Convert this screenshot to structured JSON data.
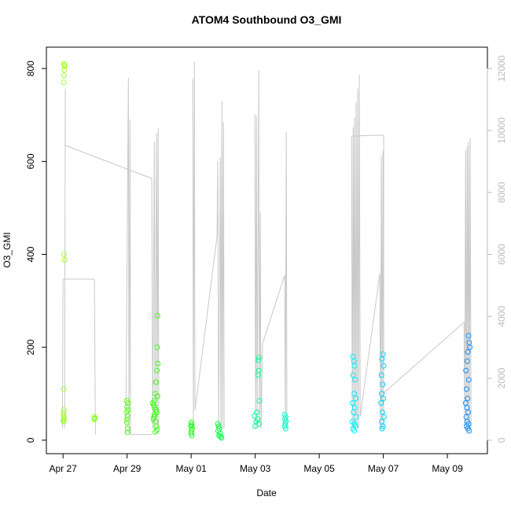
{
  "chart_data": {
    "type": "scatter",
    "title": "ATOM4 Southbound O3_GMI",
    "x_label": "Date",
    "y_label": "O3_GMI",
    "xlim": [
      116.48,
      130.25
    ],
    "xticks": [
      {
        "value": 117,
        "label": "Apr 27"
      },
      {
        "value": 119,
        "label": "Apr 29"
      },
      {
        "value": 121,
        "label": "May 01"
      },
      {
        "value": 123,
        "label": "May 03"
      },
      {
        "value": 125,
        "label": "May 05"
      },
      {
        "value": 127,
        "label": "May 07"
      },
      {
        "value": 129,
        "label": "May 09"
      }
    ],
    "ylim": [
      -29,
      846
    ],
    "yticks": [
      0,
      200,
      400,
      600,
      800
    ],
    "y2lim": [
      -435,
      12690
    ],
    "y2ticks": [
      0,
      2000,
      4000,
      6000,
      8000,
      10000,
      12000
    ],
    "y2_color": "#bbbbbb",
    "series": [
      {
        "type": "line",
        "axis": "y2",
        "color": "#c8c8c8",
        "x": [
          116.98,
          117.0,
          117.98,
          118.01,
          null,
          117.05,
          117.07,
          117.07,
          119.77,
          119.8,
          119.85,
          119.87,
          119.92,
          119.94,
          119.97,
          119.99,
          null,
          118.96,
          119.04,
          119.06,
          119.09,
          119.11,
          119.8,
          null,
          121.05,
          121.07,
          121.1,
          121.12,
          121.81,
          121.83,
          121.86,
          121.91,
          121.93,
          121.96,
          121.98,
          122.01,
          122.03,
          null,
          122.99,
          123.01,
          123.04,
          123.06,
          123.11,
          123.13,
          123.16,
          123.18,
          123.23,
          123.92,
          123.94,
          123.97,
          123.99,
          null,
          126.01,
          126.03,
          126.06,
          126.08,
          126.1,
          126.13,
          126.15,
          126.18,
          126.2,
          126.23,
          126.25,
          126.28,
          126.89,
          126.91,
          126.94,
          126.96,
          126.99,
          127.01,
          127.01,
          126.03,
          null,
          127.01,
          129.52,
          129.54,
          129.57,
          129.59,
          129.62,
          129.64,
          129.66,
          129.69,
          129.71,
          129.74
        ],
        "values": [
          380,
          5200,
          5200,
          180,
          null,
          380,
          11350,
          9520,
          8450,
          380,
          9640,
          380,
          9900,
          380,
          10080,
          380,
          null,
          180,
          11700,
          180,
          10360,
          180,
          180,
          null,
          11670,
          380,
          12230,
          960,
          6600,
          9010,
          380,
          9140,
          380,
          10960,
          380,
          10280,
          380,
          null,
          10530,
          380,
          10460,
          380,
          11930,
          380,
          7360,
          380,
          3120,
          5330,
          380,
          9950,
          380,
          null,
          9820,
          380,
          10100,
          380,
          10410,
          380,
          10910,
          380,
          11350,
          380,
          11800,
          760,
          5380,
          380,
          9190,
          380,
          9340,
          380,
          9850,
          9820,
          null,
          1520,
          3810,
          380,
          9370,
          380,
          9490,
          380,
          9620,
          380,
          9750,
          380
        ]
      },
      {
        "color": "#a6ff2e",
        "x": [
          117.03,
          117.04,
          117.05,
          117.04,
          117.03,
          117.02,
          117.03,
          117.05,
          117.02,
          117.03,
          117.01,
          117.02,
          117.03,
          117.02,
          117.01,
          117.02
        ],
        "values": [
          810,
          808,
          805,
          797,
          785,
          770,
          400,
          388,
          110,
          65,
          58,
          52,
          48,
          45,
          42,
          40
        ]
      },
      {
        "color": "#86ff24",
        "x": [
          117.98,
          117.99,
          117.98
        ],
        "values": [
          50,
          47,
          45
        ]
      },
      {
        "color": "#5cff1a",
        "x": [
          118.99,
          119.02,
          119.0,
          119.03,
          118.98,
          119.01,
          119.0,
          118.99,
          119.02,
          119.01
        ],
        "values": [
          85,
          80,
          72,
          65,
          60,
          52,
          45,
          38,
          25,
          17
        ]
      },
      {
        "color": "#36ff0c",
        "x": [
          119.95,
          119.94,
          119.96,
          119.93,
          119.9,
          119.88,
          119.95,
          119.85,
          119.8,
          119.83,
          119.87,
          119.9,
          119.92,
          119.86,
          119.84,
          119.82,
          119.89,
          119.91,
          119.93,
          119.88
        ],
        "values": [
          268,
          200,
          165,
          150,
          125,
          100,
          95,
          85,
          80,
          75,
          70,
          65,
          60,
          55,
          50,
          45,
          40,
          30,
          22,
          18
        ]
      },
      {
        "color": "#12ff10",
        "x": [
          121.0,
          121.02,
          120.99,
          121.03,
          121.01,
          121.0,
          121.02
        ],
        "values": [
          38,
          33,
          30,
          25,
          20,
          15,
          10
        ]
      },
      {
        "color": "#00ff40",
        "x": [
          121.83,
          121.86,
          121.88,
          121.84,
          121.9,
          121.87,
          121.92,
          121.95
        ],
        "values": [
          35,
          30,
          25,
          20,
          15,
          10,
          8,
          5
        ]
      },
      {
        "color": "#00ff98",
        "x": [
          123.12,
          123.1,
          123.11,
          123.09,
          123.13,
          123.05,
          122.98,
          123.08,
          123.03,
          123.12,
          123.0
        ],
        "values": [
          178,
          172,
          150,
          140,
          85,
          60,
          52,
          45,
          40,
          35,
          30
        ]
      },
      {
        "color": "#00ffc8",
        "x": [
          123.92,
          123.95,
          123.93,
          123.96,
          123.94,
          123.92,
          123.95
        ],
        "values": [
          55,
          50,
          45,
          40,
          35,
          30,
          25
        ]
      },
      {
        "color": "#00f0ff",
        "x": [
          126.05,
          126.08,
          126.1,
          126.06,
          126.12,
          126.09,
          126.14,
          126.04,
          126.11,
          126.07,
          126.15,
          126.03,
          126.1,
          126.13,
          126.06,
          126.09
        ],
        "values": [
          180,
          170,
          160,
          140,
          130,
          100,
          90,
          80,
          70,
          60,
          50,
          40,
          35,
          30,
          25,
          20
        ]
      },
      {
        "color": "#00d4ff",
        "x": [
          126.99,
          126.96,
          127.01,
          126.94,
          126.98,
          126.95,
          127.0,
          126.93,
          126.97,
          127.02,
          126.95,
          126.99,
          126.96
        ],
        "values": [
          185,
          175,
          160,
          140,
          120,
          100,
          90,
          80,
          60,
          50,
          40,
          30,
          25
        ]
      },
      {
        "color": "#1290ff",
        "x": [
          129.66,
          129.68,
          129.7,
          129.64,
          129.62,
          129.58,
          129.67,
          129.6,
          129.63,
          129.57,
          129.61,
          129.65,
          129.59,
          129.62,
          129.66,
          129.6,
          129.64,
          129.68
        ],
        "values": [
          225,
          210,
          200,
          190,
          170,
          150,
          130,
          110,
          90,
          80,
          70,
          60,
          50,
          40,
          35,
          30,
          25,
          20
        ]
      }
    ]
  }
}
